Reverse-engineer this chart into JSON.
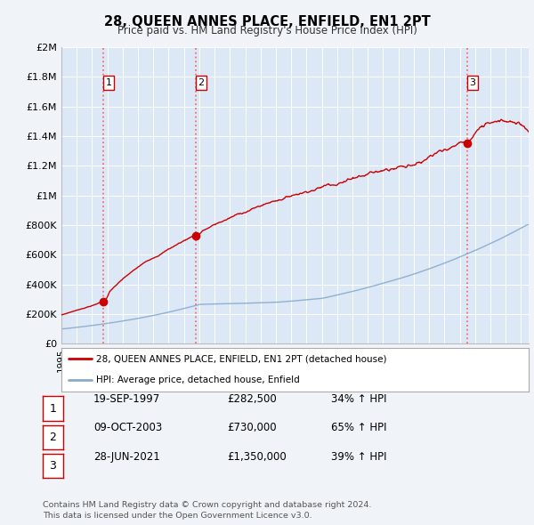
{
  "title": "28, QUEEN ANNES PLACE, ENFIELD, EN1 2PT",
  "subtitle": "Price paid vs. HM Land Registry's House Price Index (HPI)",
  "ylabel_ticks": [
    "£0",
    "£200K",
    "£400K",
    "£600K",
    "£800K",
    "£1M",
    "£1.2M",
    "£1.4M",
    "£1.6M",
    "£1.8M",
    "£2M"
  ],
  "ytick_values": [
    0,
    200000,
    400000,
    600000,
    800000,
    1000000,
    1200000,
    1400000,
    1600000,
    1800000,
    2000000
  ],
  "ylim": [
    0,
    2000000
  ],
  "xmin": 1995.0,
  "xmax": 2025.5,
  "sale_dates": [
    1997.72,
    2003.77,
    2021.49
  ],
  "sale_prices": [
    282500,
    730000,
    1350000
  ],
  "sale_labels": [
    "1",
    "2",
    "3"
  ],
  "vline_color": "#ff5555",
  "dot_color": "#cc0000",
  "line_color_red": "#cc0000",
  "line_color_blue": "#88aacc",
  "background_plot": "#dce8f5",
  "background_fig": "#f0f4f8",
  "grid_color": "#ffffff",
  "legend_label_red": "28, QUEEN ANNES PLACE, ENFIELD, EN1 2PT (detached house)",
  "legend_label_blue": "HPI: Average price, detached house, Enfield",
  "table_rows": [
    [
      "1",
      "19-SEP-1997",
      "£282,500",
      "34% ↑ HPI"
    ],
    [
      "2",
      "09-OCT-2003",
      "£730,000",
      "65% ↑ HPI"
    ],
    [
      "3",
      "28-JUN-2021",
      "£1,350,000",
      "39% ↑ HPI"
    ]
  ],
  "footnote": "Contains HM Land Registry data © Crown copyright and database right 2024.\nThis data is licensed under the Open Government Licence v3.0."
}
